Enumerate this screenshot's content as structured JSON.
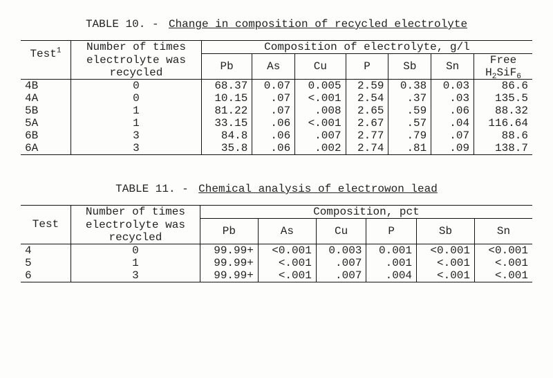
{
  "table10": {
    "caption_prefix": "TABLE 10. - ",
    "caption": "Change in composition of recycled electrolyte",
    "header": {
      "test": "Test",
      "test_sup": "1",
      "recycled_line1": "Number of times",
      "recycled_line2": "electrolyte was",
      "recycled_line3": "recycled",
      "comp_span": "Composition of electrolyte, g/l"
    },
    "columns": [
      "Pb",
      "As",
      "Cu",
      "P",
      "Sb",
      "Sn"
    ],
    "free_col_line1": "Free",
    "free_col_html": "H<sub>2</sub>SiF<sub>6</sub>",
    "rows": [
      {
        "test": "4B",
        "recycled": "0",
        "Pb": "68.37",
        "As": "0.07",
        "Cu": "0.005",
        "P": "2.59",
        "Sb": "0.38",
        "Sn": "0.03",
        "Free": "86.6"
      },
      {
        "test": "4A",
        "recycled": "0",
        "Pb": "10.15",
        "As": ".07",
        "Cu": "<.001",
        "P": "2.54",
        "Sb": ".37",
        "Sn": ".03",
        "Free": "135.5"
      },
      {
        "test": "5B",
        "recycled": "1",
        "Pb": "81.22",
        "As": ".07",
        "Cu": ".008",
        "P": "2.65",
        "Sb": ".59",
        "Sn": ".06",
        "Free": "88.32"
      },
      {
        "test": "5A",
        "recycled": "1",
        "Pb": "33.15",
        "As": ".06",
        "Cu": "<.001",
        "P": "2.67",
        "Sb": ".57",
        "Sn": ".04",
        "Free": "116.64"
      },
      {
        "test": "6B",
        "recycled": "3",
        "Pb": "84.8",
        "As": ".06",
        "Cu": ".007",
        "P": "2.77",
        "Sb": ".79",
        "Sn": ".07",
        "Free": "88.6"
      },
      {
        "test": "6A",
        "recycled": "3",
        "Pb": "35.8",
        "As": ".06",
        "Cu": ".002",
        "P": "2.74",
        "Sb": ".81",
        "Sn": ".09",
        "Free": "138.7"
      }
    ]
  },
  "table11": {
    "caption_prefix": "TABLE 11. - ",
    "caption": "Chemical analysis of electrowon lead",
    "header": {
      "test": "Test",
      "recycled_line1": "Number of times",
      "recycled_line2": "electrolyte was",
      "recycled_line3": "recycled",
      "comp_span": "Composition, pct"
    },
    "columns": [
      "Pb",
      "As",
      "Cu",
      "P",
      "Sb",
      "Sn"
    ],
    "rows": [
      {
        "test": "4",
        "recycled": "0",
        "Pb": "99.99+",
        "As": "<0.001",
        "Cu": "0.003",
        "P": "0.001",
        "Sb": "<0.001",
        "Sn": "<0.001"
      },
      {
        "test": "5",
        "recycled": "1",
        "Pb": "99.99+",
        "As": "<.001",
        "Cu": ".007",
        "P": ".001",
        "Sb": "<.001",
        "Sn": "<.001"
      },
      {
        "test": "6",
        "recycled": "3",
        "Pb": "99.99+",
        "As": "<.001",
        "Cu": ".007",
        "P": ".004",
        "Sb": "<.001",
        "Sn": "<.001"
      }
    ]
  }
}
